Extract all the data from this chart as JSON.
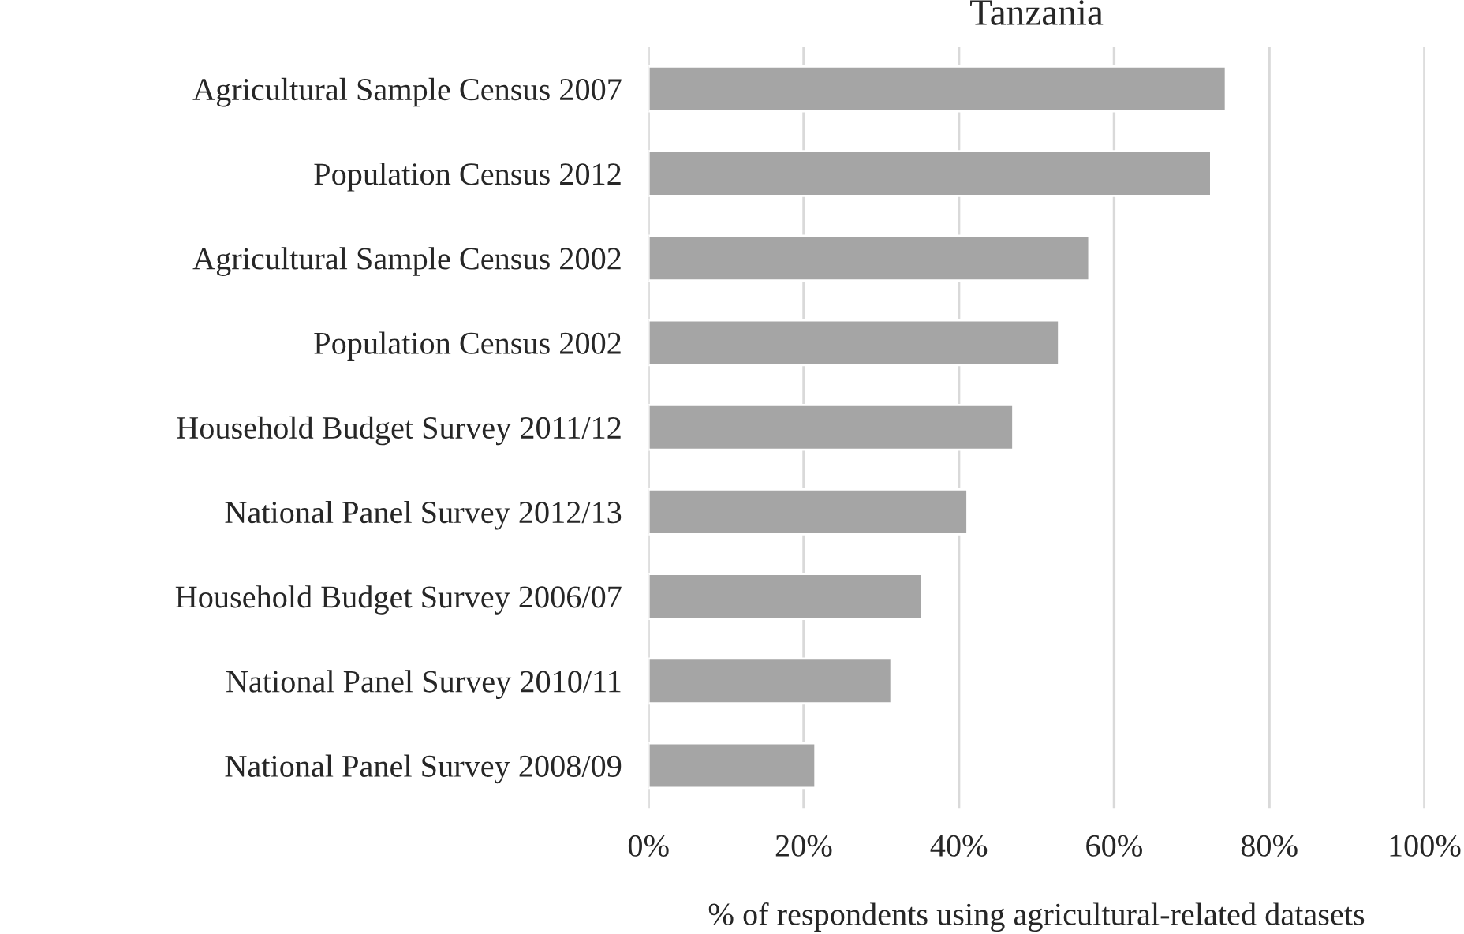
{
  "chart_data": {
    "type": "bar",
    "orientation": "horizontal",
    "title": "Tanzania",
    "xlabel": "% of respondents using agricultural-related datasets",
    "categories": [
      "Agricultural Sample Census 2007",
      "Population Census 2012",
      "Agricultural Sample Census 2002",
      "Population Census 2002",
      "Household Budget Survey 2011/12",
      "National Panel Survey 2012/13",
      "Household Budget Survey 2006/07",
      "National Panel Survey 2010/11",
      "National Panel Survey 2008/09"
    ],
    "values": [
      74.4,
      72.5,
      56.8,
      52.9,
      47.0,
      41.1,
      35.2,
      31.3,
      21.5
    ],
    "color": "#a5a5a5",
    "xlim": [
      0,
      100
    ],
    "xticks": [
      {
        "value": 0,
        "label": "0%"
      },
      {
        "value": 20,
        "label": "20%"
      },
      {
        "value": 40,
        "label": "40%"
      },
      {
        "value": 60,
        "label": "60%"
      },
      {
        "value": 80,
        "label": "80%"
      },
      {
        "value": 100,
        "label": "100%"
      }
    ],
    "grid": "x",
    "legend": false
  }
}
